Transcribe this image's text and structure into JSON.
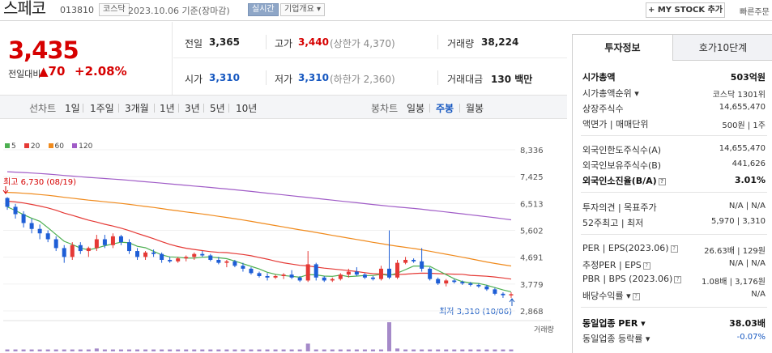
{
  "header": {
    "stock_name": "스페코",
    "stock_code": "013810",
    "market": "코스닥",
    "date_text": "2023.10.06  기준(장마감)",
    "realtime_label": "실시간",
    "company_overview_label": "기업개요 ▾",
    "mystock_label": "+ MY STOCK 추가",
    "quick_order_label": "빠른주문"
  },
  "price": {
    "current": "3,435",
    "diff_label": "전일대비",
    "diff_value": "▲70",
    "diff_percent": "+2.08%"
  },
  "quote": {
    "prev_close_label": "전일",
    "prev_close": "3,365",
    "high_label": "고가",
    "high": "3,440",
    "upper_limit": "(상한가 4,370)",
    "volume_label": "거래량",
    "volume": "38,224",
    "open_label": "시가",
    "open": "3,310",
    "low_label": "저가",
    "low": "3,310",
    "lower_limit": "(하한가 2,360)",
    "trade_value_label": "거래대금",
    "trade_value": "130 백만"
  },
  "period_tabs": {
    "line_label": "선차트",
    "items": [
      "1일",
      "1주일",
      "3개월",
      "1년",
      "3년",
      "5년",
      "10년"
    ],
    "candle_label": "봉차트",
    "candle_items": [
      "일봉",
      "주봉",
      "월봉"
    ],
    "active_candle": "주봉"
  },
  "chart_data": {
    "type": "candlestick",
    "legend": [
      "5",
      "20",
      "60",
      "120"
    ],
    "ma_colors": {
      "5": "#4caf50",
      "20": "#e53935",
      "60": "#f08a1c",
      "120": "#a05cc7"
    },
    "up_color": "#e53935",
    "down_color": "#1e5ed6",
    "y_ticks": [
      "8,336",
      "7,425",
      "6,513",
      "5,602",
      "4,691",
      "3,779",
      "2,868"
    ],
    "ylim": [
      2868,
      8336
    ],
    "high_annotation": "최고 6,730 (08/19)",
    "low_annotation": "최저 3,310 (10/06)",
    "volume_label": "거래량",
    "candles": [
      [
        6700,
        6730,
        6300,
        6400
      ],
      [
        6400,
        6500,
        6000,
        6150
      ],
      [
        6150,
        6250,
        5700,
        5850
      ],
      [
        5850,
        6000,
        5500,
        5650
      ],
      [
        5650,
        5800,
        5300,
        5500
      ],
      [
        5500,
        5600,
        5200,
        5300
      ],
      [
        5300,
        5400,
        4900,
        5000
      ],
      [
        5000,
        5100,
        4500,
        4700
      ],
      [
        4700,
        5200,
        4600,
        5100
      ],
      [
        5100,
        5200,
        4800,
        4900
      ],
      [
        4900,
        5050,
        4700,
        5000
      ],
      [
        5000,
        5450,
        4900,
        5300
      ],
      [
        5300,
        5450,
        5000,
        5100
      ],
      [
        5100,
        5500,
        5000,
        5400
      ],
      [
        5400,
        5450,
        5100,
        5200
      ],
      [
        5200,
        5300,
        4800,
        4900
      ],
      [
        4900,
        5000,
        4600,
        4700
      ],
      [
        4700,
        4900,
        4600,
        4850
      ],
      [
        4850,
        4950,
        4700,
        4800
      ],
      [
        4800,
        4850,
        4500,
        4600
      ],
      [
        4600,
        4700,
        4500,
        4550
      ],
      [
        4550,
        4700,
        4500,
        4650
      ],
      [
        4650,
        4750,
        4550,
        4700
      ],
      [
        4700,
        4850,
        4600,
        4800
      ],
      [
        4800,
        4900,
        4700,
        4750
      ],
      [
        4750,
        4800,
        4550,
        4600
      ],
      [
        4600,
        4700,
        4450,
        4500
      ],
      [
        4500,
        4600,
        4350,
        4550
      ],
      [
        4550,
        4600,
        4350,
        4400
      ],
      [
        4400,
        4500,
        4200,
        4300
      ],
      [
        4300,
        4350,
        4100,
        4150
      ],
      [
        4150,
        4200,
        4000,
        4050
      ],
      [
        4050,
        4150,
        3900,
        4000
      ],
      [
        4000,
        4100,
        3950,
        4050
      ],
      [
        4050,
        4150,
        3950,
        4100
      ],
      [
        4100,
        4250,
        3950,
        4000
      ],
      [
        4000,
        4050,
        3850,
        3900
      ],
      [
        3900,
        4900,
        3850,
        4450
      ],
      [
        4450,
        4500,
        3900,
        4000
      ],
      [
        4000,
        4050,
        3850,
        3900
      ],
      [
        3900,
        4000,
        3850,
        3950
      ],
      [
        3950,
        4150,
        3900,
        4100
      ],
      [
        4100,
        4300,
        4000,
        4200
      ],
      [
        4200,
        4350,
        4050,
        4100
      ],
      [
        4100,
        4150,
        3950,
        4000
      ],
      [
        4000,
        4050,
        3900,
        3950
      ],
      [
        3950,
        4400,
        3900,
        4300
      ],
      [
        4300,
        5600,
        3950,
        4000
      ],
      [
        4000,
        4600,
        3950,
        4500
      ],
      [
        4500,
        4700,
        4450,
        4600
      ],
      [
        4600,
        4650,
        4500,
        4550
      ],
      [
        4550,
        5000,
        4200,
        4300
      ],
      [
        4300,
        4350,
        3900,
        3950
      ],
      [
        3950,
        4000,
        3750,
        3800
      ],
      [
        3800,
        3950,
        3700,
        3900
      ],
      [
        3900,
        3950,
        3800,
        3850
      ],
      [
        3850,
        3900,
        3750,
        3800
      ],
      [
        3800,
        3850,
        3700,
        3750
      ],
      [
        3750,
        3800,
        3650,
        3700
      ],
      [
        3700,
        3750,
        3550,
        3600
      ],
      [
        3600,
        3650,
        3400,
        3450
      ],
      [
        3450,
        3500,
        3310,
        3400
      ],
      [
        3400,
        3500,
        3310,
        3435
      ]
    ],
    "volume": [
      2,
      2,
      2,
      2,
      2,
      2,
      2,
      2,
      2,
      2,
      2,
      3,
      2,
      2,
      2,
      2,
      2,
      2,
      2,
      2,
      2,
      2,
      2,
      2,
      2,
      2,
      2,
      2,
      2,
      2,
      2,
      2,
      2,
      2,
      2,
      2,
      2,
      8,
      2,
      2,
      2,
      2,
      2,
      2,
      2,
      2,
      2,
      30,
      3,
      2,
      2,
      2,
      2,
      2,
      2,
      2,
      2,
      2,
      2,
      2,
      2,
      2,
      2
    ]
  },
  "right_panel": {
    "tabs": [
      "투자정보",
      "호가10단계"
    ],
    "rows": [
      {
        "label": "시가총액",
        "value": "503억원",
        "bold": true
      },
      {
        "label": "시가총액순위 ▾",
        "value": "코스닥 1301위"
      },
      {
        "label": "상장주식수",
        "value": "14,655,470"
      },
      {
        "label": "액면가 | 매매단위",
        "value": "500원 | 1주"
      },
      {
        "label": "외국인한도주식수(A)",
        "value": "14,655,470"
      },
      {
        "label": "외국인보유주식수(B)",
        "value": "441,626"
      },
      {
        "label": "외국인소진율(B/A)",
        "value": "3.01%",
        "bold": true
      },
      {
        "label": "투자의견 | 목표주가",
        "value": "N/A | N/A"
      },
      {
        "label": "52주최고 | 최저",
        "value": "5,970 | 3,310"
      },
      {
        "label": "PER | EPS(2023.06)",
        "value": "26.63배 | 129원"
      },
      {
        "label": "추정PER | EPS",
        "value": "N/A | N/A"
      },
      {
        "label": "PBR | BPS (2023.06)",
        "value": "1.08배 | 3,176원"
      },
      {
        "label": "배당수익률 ▾",
        "value": "N/A"
      },
      {
        "label": "동일업종 PER ▾",
        "value": "38.03배",
        "bold": true
      },
      {
        "label": "동일업종 등락률 ▾",
        "value": "-0.07%",
        "blue": true
      }
    ]
  }
}
